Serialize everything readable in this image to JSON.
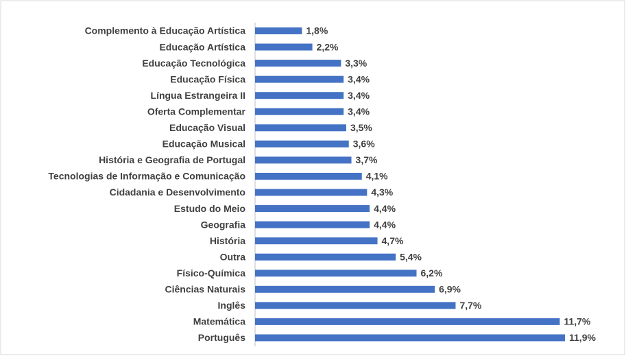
{
  "chart_data": {
    "type": "bar",
    "orientation": "horizontal",
    "color": "#4472c4",
    "categories": [
      "Complemento à Educação Artística",
      "Educação Artística",
      "Educação Tecnológica",
      "Educação Física",
      "Língua Estrangeira II",
      "Oferta Complementar",
      "Educação Visual",
      "Educação Musical",
      "História e Geografia de Portugal",
      "Tecnologias de Informação e Comunicação",
      "Cidadania e Desenvolvimento",
      "Estudo do Meio",
      "Geografia",
      "História",
      "Outra",
      "Físico-Química",
      "Ciências Naturais",
      "Inglês",
      "Matemática",
      "Português"
    ],
    "values": [
      1.8,
      2.2,
      3.3,
      3.4,
      3.4,
      3.4,
      3.5,
      3.6,
      3.7,
      4.1,
      4.3,
      4.4,
      4.4,
      4.7,
      5.4,
      6.2,
      6.9,
      7.7,
      11.7,
      11.9
    ],
    "value_labels": [
      "1,8%",
      "2,2%",
      "3,3%",
      "3,4%",
      "3,4%",
      "3,4%",
      "3,5%",
      "3,6%",
      "3,7%",
      "4,1%",
      "4,3%",
      "4,4%",
      "4,4%",
      "4,7%",
      "5,4%",
      "6,2%",
      "6,9%",
      "7,7%",
      "11,7%",
      "11,9%"
    ]
  }
}
